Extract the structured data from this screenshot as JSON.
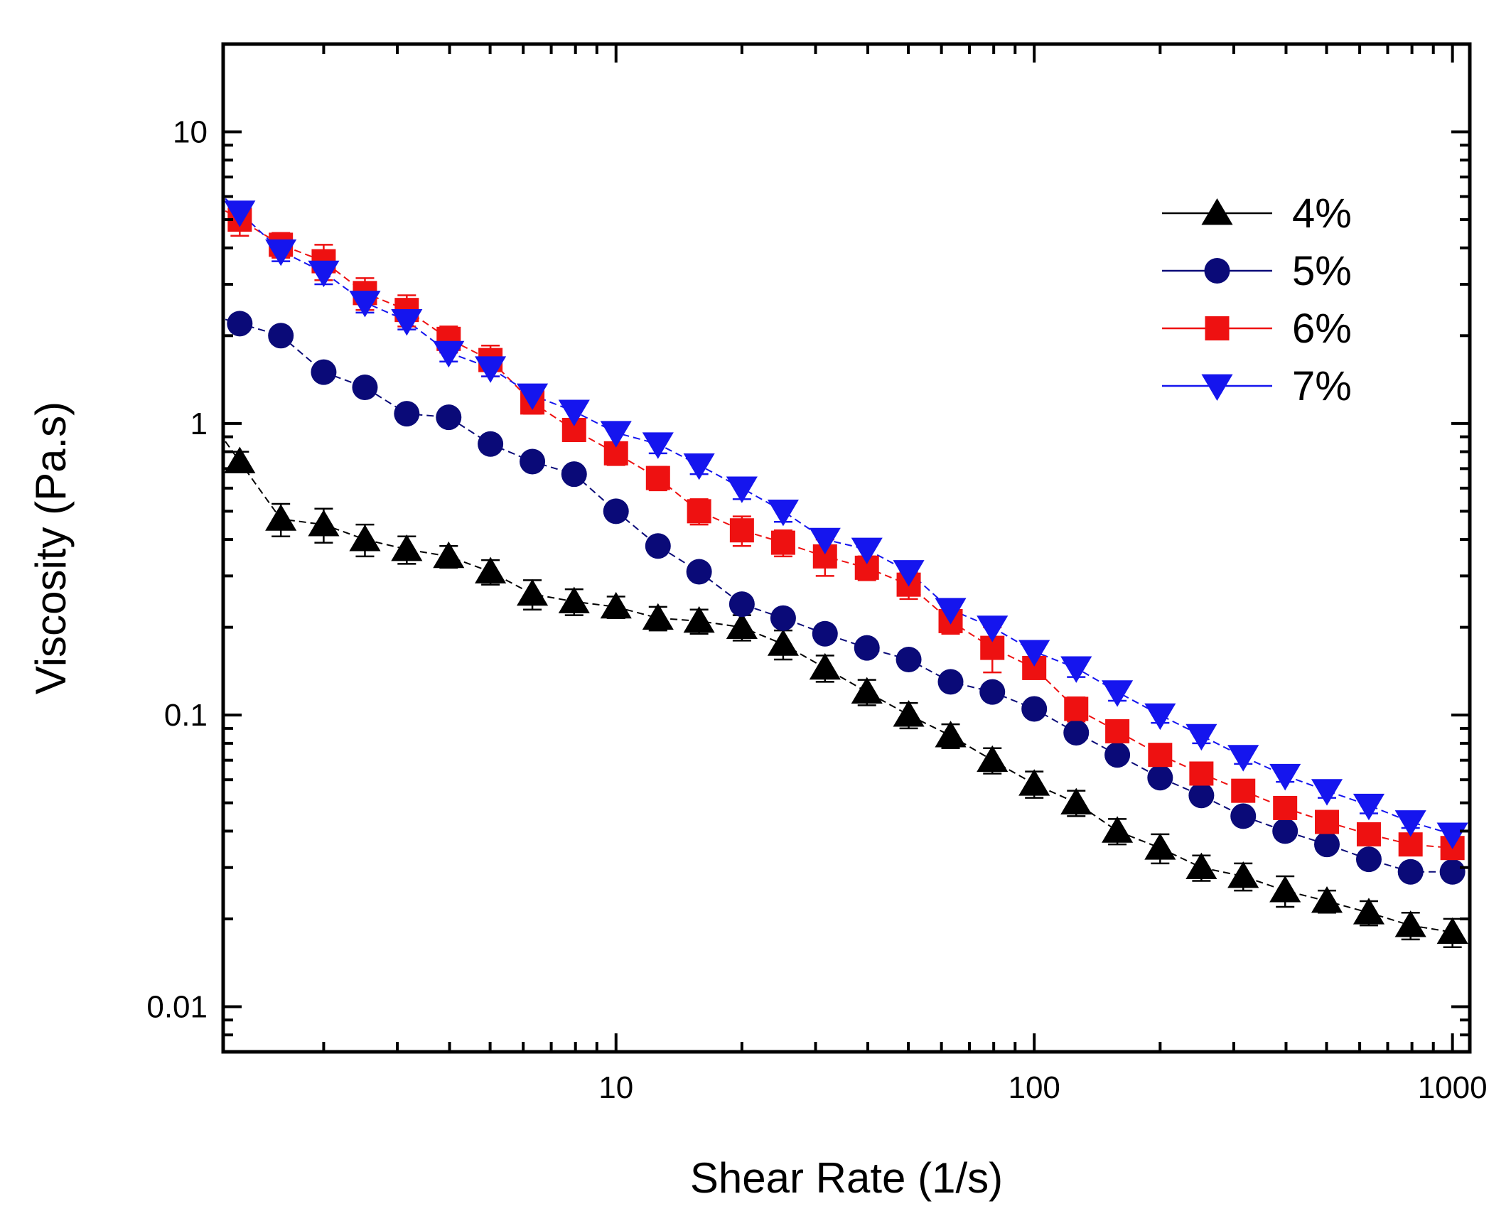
{
  "chart_data": {
    "type": "scatter",
    "xlabel": "Shear Rate (1/s)",
    "ylabel": "Viscosity (Pa.s)",
    "x_scale": "log",
    "y_scale": "log",
    "xlim": [
      1.15,
      1100
    ],
    "ylim": [
      0.007,
      20
    ],
    "xticks": [
      {
        "value": 10,
        "label": "10"
      },
      {
        "value": 100,
        "label": "100"
      },
      {
        "value": 1000,
        "label": "1000"
      }
    ],
    "yticks": [
      {
        "value": 0.01,
        "label": "0.01"
      },
      {
        "value": 0.1,
        "label": "0.1"
      },
      {
        "value": 1,
        "label": "1"
      },
      {
        "value": 10,
        "label": "10"
      }
    ],
    "grid": false,
    "legend_position": "top-right",
    "x": [
      1.26,
      1.58,
      2,
      2.51,
      3.16,
      3.98,
      5.01,
      6.31,
      7.94,
      10,
      12.6,
      15.8,
      20,
      25.1,
      31.6,
      39.8,
      50.1,
      63.1,
      79.4,
      100,
      126,
      158,
      200,
      251,
      316,
      398,
      501,
      631,
      794,
      1000
    ],
    "series": [
      {
        "name": "4%",
        "marker": "triangle-up",
        "color": "#000000",
        "line_color": "#000000",
        "values": [
          0.74,
          0.47,
          0.45,
          0.4,
          0.37,
          0.35,
          0.31,
          0.26,
          0.245,
          0.235,
          0.215,
          0.21,
          0.2,
          0.175,
          0.145,
          0.12,
          0.1,
          0.085,
          0.07,
          0.058,
          0.05,
          0.04,
          0.035,
          0.03,
          0.028,
          0.025,
          0.023,
          0.021,
          0.019,
          0.018
        ],
        "errors": [
          0.06,
          0.06,
          0.06,
          0.05,
          0.04,
          0.03,
          0.03,
          0.03,
          0.025,
          0.02,
          0.02,
          0.02,
          0.02,
          0.02,
          0.015,
          0.012,
          0.01,
          0.008,
          0.007,
          0.006,
          0.005,
          0.004,
          0.004,
          0.003,
          0.003,
          0.003,
          0.002,
          0.002,
          0.002,
          0.002
        ]
      },
      {
        "name": "5%",
        "marker": "circle",
        "color": "#0a0a78",
        "line_color": "#0a0a78",
        "values": [
          2.2,
          2.0,
          1.5,
          1.33,
          1.08,
          1.05,
          0.85,
          0.74,
          0.67,
          0.5,
          0.38,
          0.31,
          0.24,
          0.215,
          0.19,
          0.17,
          0.155,
          0.13,
          0.12,
          0.105,
          0.087,
          0.073,
          0.061,
          0.053,
          0.045,
          0.04,
          0.036,
          0.032,
          0.029,
          0.029
        ],
        "errors": [
          0.1,
          0.1,
          0.08,
          0.06,
          0.05,
          0.04,
          0.04,
          0.03,
          0.03,
          0.02,
          0.02,
          0.015,
          0.01,
          0.01,
          0.008,
          0.007,
          0.006,
          0.005,
          0.005,
          0.004,
          0.003,
          0.003,
          0.002,
          0.002,
          0.002,
          0.002,
          0.001,
          0.001,
          0.001,
          0.001
        ]
      },
      {
        "name": "6%",
        "marker": "square",
        "color": "#ee1111",
        "line_color": "#ee1111",
        "values": [
          5.0,
          4.1,
          3.6,
          2.8,
          2.45,
          1.95,
          1.65,
          1.18,
          0.95,
          0.79,
          0.65,
          0.5,
          0.43,
          0.39,
          0.35,
          0.32,
          0.28,
          0.21,
          0.17,
          0.145,
          0.105,
          0.088,
          0.073,
          0.063,
          0.055,
          0.048,
          0.043,
          0.039,
          0.036,
          0.035
        ],
        "errors": [
          0.6,
          0.4,
          0.5,
          0.35,
          0.3,
          0.2,
          0.2,
          0.1,
          0.08,
          0.07,
          0.06,
          0.05,
          0.05,
          0.04,
          0.05,
          0.03,
          0.03,
          0.02,
          0.03,
          0.01,
          0.01,
          0.007,
          0.005,
          0.005,
          0.004,
          0.003,
          0.003,
          0.003,
          0.002,
          0.002
        ]
      },
      {
        "name": "7%",
        "marker": "triangle-down",
        "color": "#1515ee",
        "line_color": "#1515ee",
        "values": [
          5.3,
          3.9,
          3.3,
          2.6,
          2.25,
          1.75,
          1.55,
          1.25,
          1.1,
          0.93,
          0.85,
          0.72,
          0.6,
          0.5,
          0.4,
          0.37,
          0.31,
          0.23,
          0.2,
          0.165,
          0.145,
          0.12,
          0.1,
          0.085,
          0.072,
          0.062,
          0.055,
          0.049,
          0.043,
          0.039
        ],
        "errors": [
          0.4,
          0.3,
          0.3,
          0.2,
          0.15,
          0.12,
          0.1,
          0.08,
          0.08,
          0.07,
          0.06,
          0.05,
          0.05,
          0.04,
          0.03,
          0.03,
          0.025,
          0.02,
          0.015,
          0.012,
          0.01,
          0.008,
          0.006,
          0.005,
          0.004,
          0.003,
          0.003,
          0.003,
          0.002,
          0.002
        ]
      }
    ]
  }
}
